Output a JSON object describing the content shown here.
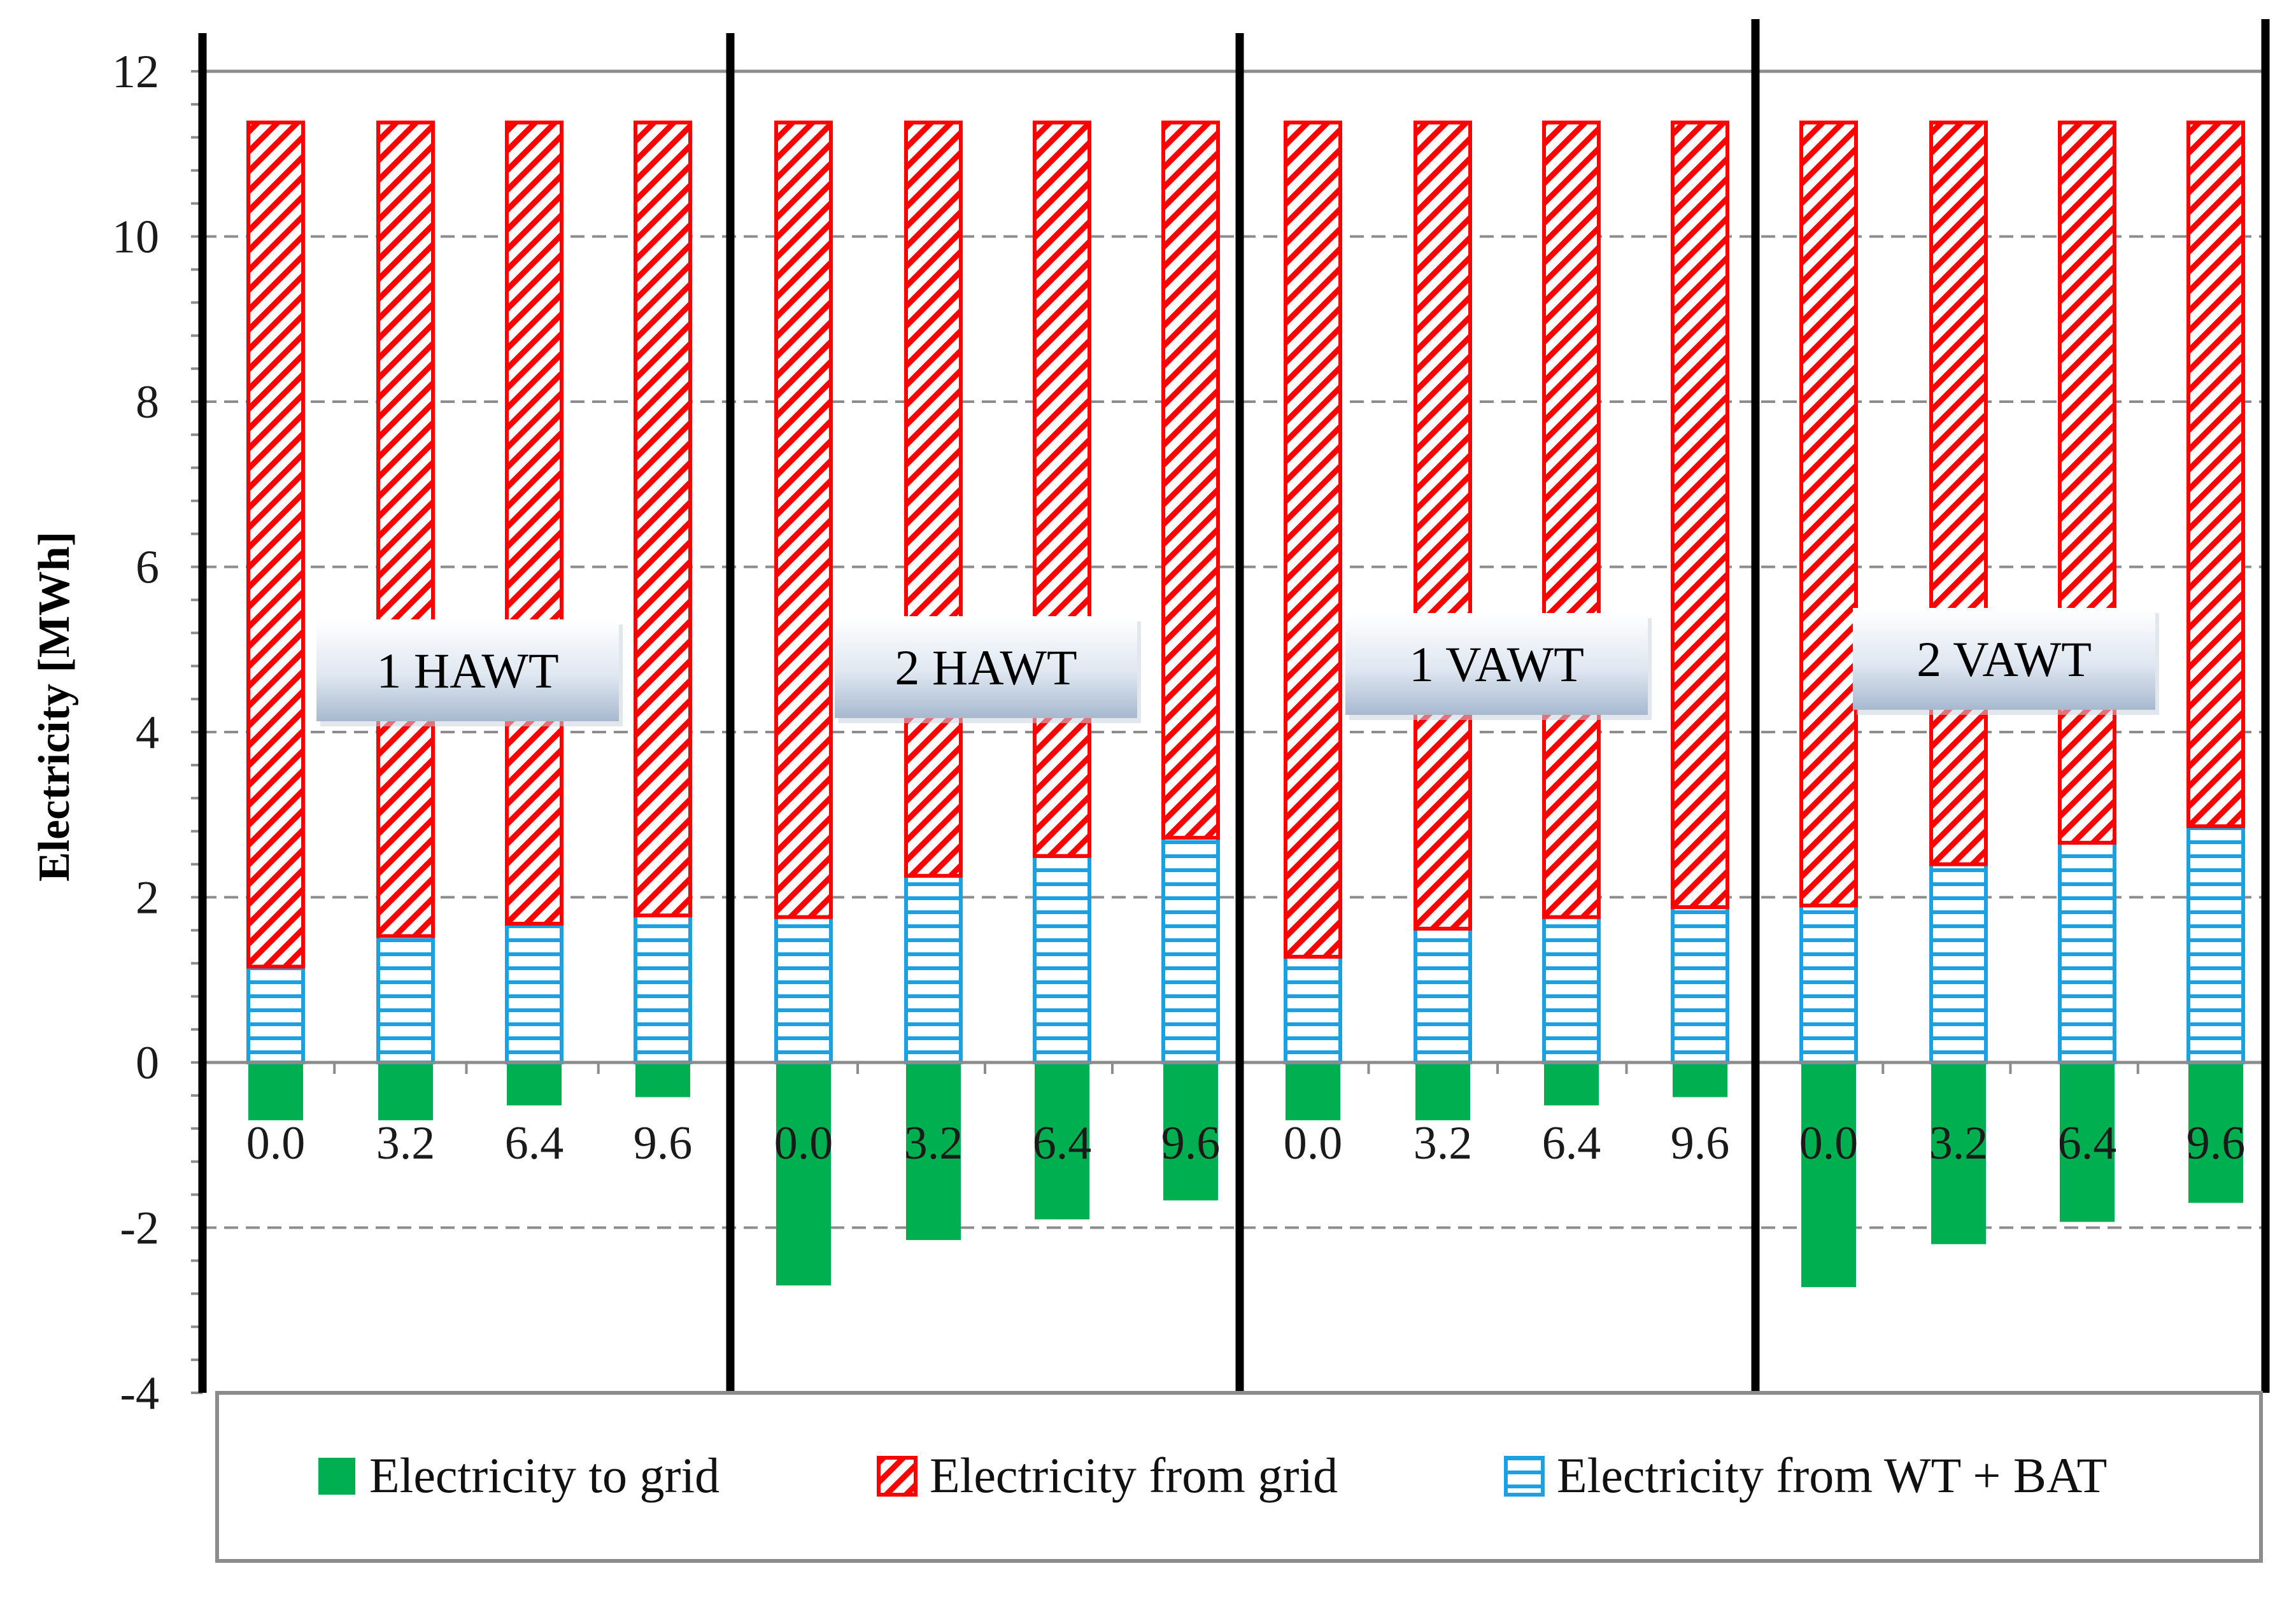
{
  "chart_data": {
    "type": "bar",
    "stacked": true,
    "title": "",
    "xlabel": "",
    "ylabel": "Electricity [MWh]",
    "ylim": [
      -4,
      12
    ],
    "yticks": [
      -4,
      -2,
      0,
      2,
      4,
      6,
      8,
      10,
      12
    ],
    "groups": [
      "1 HAWT",
      "2 HAWT",
      "1 VAWT",
      "2 VAWT"
    ],
    "categories": [
      "0.0",
      "3.2",
      "6.4",
      "9.6"
    ],
    "series": [
      {
        "name": "Electricity to grid",
        "color": "#00b050",
        "values": [
          [
            -0.7,
            -0.7,
            -0.52,
            -0.42
          ],
          [
            -2.7,
            -2.15,
            -1.9,
            -1.67
          ],
          [
            -0.7,
            -0.7,
            -0.52,
            -0.42
          ],
          [
            -2.72,
            -2.2,
            -1.93,
            -1.7
          ]
        ]
      },
      {
        "name": "Electricity from grid",
        "color": "#ff0000",
        "values": [
          [
            10.22,
            9.85,
            9.7,
            9.6
          ],
          [
            9.62,
            9.12,
            8.88,
            8.66
          ],
          [
            10.1,
            9.76,
            9.62,
            9.5
          ],
          [
            9.48,
            8.98,
            8.72,
            8.52
          ]
        ]
      },
      {
        "name": "Electricity from WT + BAT",
        "color": "#1ba1e2",
        "values": [
          [
            1.16,
            1.53,
            1.68,
            1.78
          ],
          [
            1.76,
            2.26,
            2.5,
            2.72
          ],
          [
            1.28,
            1.62,
            1.76,
            1.88
          ],
          [
            1.9,
            2.4,
            2.66,
            2.86
          ]
        ]
      }
    ],
    "legend_position": "bottom",
    "grid": true
  }
}
